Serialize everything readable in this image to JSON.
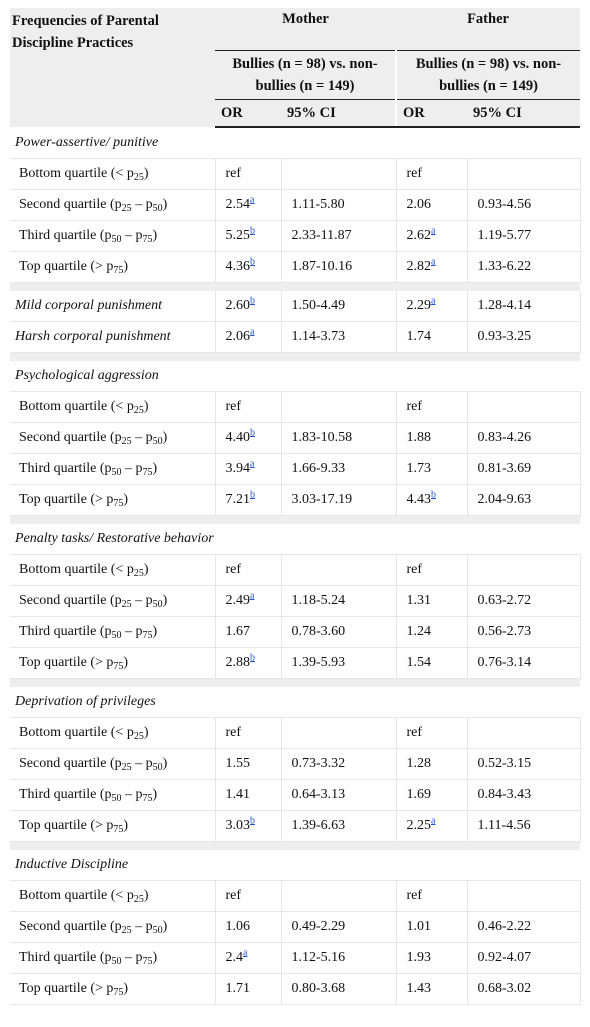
{
  "header": {
    "col_label": "Frequencies of Parental Discipline Practices",
    "mother": "Mother",
    "father": "Father",
    "mother_sub": "Bullies (n = 98) vs. non-bullies (n = 149)",
    "father_sub": "Bullies (n = 98) vs. non-bullies (n = 149)",
    "or": "OR",
    "ci": "95% CI"
  },
  "sections": [
    {
      "title": "Power-assertive/ punitive",
      "rows": [
        {
          "p": "Bottom quartile (< p",
          "s1": "25",
          "m": "",
          "s2": "",
          "e": ")",
          "mor": "ref",
          "msup": "",
          "mci": "",
          "for": "ref",
          "fsup": "",
          "fci": ""
        },
        {
          "p": "Second quartile (p",
          "s1": "25",
          "m": " – p",
          "s2": "50",
          "e": ")",
          "mor": "2.54",
          "msup": "a",
          "mci": "1.11-5.80",
          "for": "2.06",
          "fsup": "",
          "fci": "0.93-4.56"
        },
        {
          "p": "Third quartile (p",
          "s1": "50",
          "m": " – p",
          "s2": "75",
          "e": ")",
          "mor": "5.25",
          "msup": "b",
          "mci": "2.33-11.87",
          "for": "2.62",
          "fsup": "a",
          "fci": "1.19-5.77"
        },
        {
          "p": "Top quartile (> p",
          "s1": "75",
          "m": "",
          "s2": "",
          "e": ")",
          "mor": "4.36",
          "msup": "b",
          "mci": "1.87-10.16",
          "for": "2.82",
          "fsup": "a",
          "fci": "1.33-6.22"
        }
      ]
    },
    {
      "title": "",
      "rows": [
        {
          "it": "Mild corporal punishment",
          "mor": "2.60",
          "msup": "b",
          "mci": "1.50-4.49",
          "for": "2.29",
          "fsup": "a",
          "fci": "1.28-4.14"
        },
        {
          "it": "Harsh corporal punishment",
          "mor": "2.06",
          "msup": "a",
          "mci": "1.14-3.73",
          "for": "1.74",
          "fsup": "",
          "fci": "0.93-3.25"
        }
      ]
    },
    {
      "title": "Psychological aggression",
      "rows": [
        {
          "p": "Bottom quartile (< p",
          "s1": "25",
          "m": "",
          "s2": "",
          "e": ")",
          "mor": "ref",
          "msup": "",
          "mci": "",
          "for": "ref",
          "fsup": "",
          "fci": ""
        },
        {
          "p": "Second quartile (p",
          "s1": "25",
          "m": " – p",
          "s2": "50",
          "e": ")",
          "mor": "4.40",
          "msup": "b",
          "mci": "1.83-10.58",
          "for": "1.88",
          "fsup": "",
          "fci": "0.83-4.26"
        },
        {
          "p": "Third quartile (p",
          "s1": "50",
          "m": " – p",
          "s2": "75",
          "e": ")",
          "mor": "3.94",
          "msup": "a",
          "mci": "1.66-9.33",
          "for": "1.73",
          "fsup": "",
          "fci": "0.81-3.69"
        },
        {
          "p": "Top quartile (> p",
          "s1": "75",
          "m": "",
          "s2": "",
          "e": ")",
          "mor": "7.21",
          "msup": "b",
          "mci": "3.03-17.19",
          "for": "4.43",
          "fsup": "b",
          "fci": "2.04-9.63"
        }
      ]
    },
    {
      "title": "Penalty tasks/ Restorative behavior",
      "rows": [
        {
          "p": "Bottom quartile (< p",
          "s1": "25",
          "m": "",
          "s2": "",
          "e": ")",
          "mor": "ref",
          "msup": "",
          "mci": "",
          "for": "ref",
          "fsup": "",
          "fci": ""
        },
        {
          "p": "Second quartile (p",
          "s1": "25",
          "m": " – p",
          "s2": "50",
          "e": ")",
          "mor": "2.49",
          "msup": "a",
          "mci": "1.18-5.24",
          "for": "1.31",
          "fsup": "",
          "fci": "0.63-2.72"
        },
        {
          "p": "Third quartile (p",
          "s1": "50",
          "m": " – p",
          "s2": "75",
          "e": ")",
          "mor": "1.67",
          "msup": "",
          "mci": "0.78-3.60",
          "for": "1.24",
          "fsup": "",
          "fci": "0.56-2.73"
        },
        {
          "p": "Top quartile (> p",
          "s1": "75",
          "m": "",
          "s2": "",
          "e": ")",
          "mor": "2.88",
          "msup": "b",
          "mci": "1.39-5.93",
          "for": "1.54",
          "fsup": "",
          "fci": "0.76-3.14"
        }
      ]
    },
    {
      "title": "Deprivation of privileges",
      "rows": [
        {
          "p": "Bottom quartile (< p",
          "s1": "25",
          "m": "",
          "s2": "",
          "e": ")",
          "mor": "ref",
          "msup": "",
          "mci": "",
          "for": "ref",
          "fsup": "",
          "fci": ""
        },
        {
          "p": "Second quartile (p",
          "s1": "25",
          "m": " – p",
          "s2": "50",
          "e": ")",
          "mor": "1.55",
          "msup": "",
          "mci": "0.73-3.32",
          "for": "1.28",
          "fsup": "",
          "fci": "0.52-3.15"
        },
        {
          "p": "Third quartile (p",
          "s1": "50",
          "m": " – p",
          "s2": "75",
          "e": ")",
          "mor": "1.41",
          "msup": "",
          "mci": "0.64-3.13",
          "for": "1.69",
          "fsup": "",
          "fci": "0.84-3.43"
        },
        {
          "p": "Top quartile (> p",
          "s1": "75",
          "m": "",
          "s2": "",
          "e": ")",
          "mor": "3.03",
          "msup": "b",
          "mci": "1.39-6.63",
          "for": "2.25",
          "fsup": "a",
          "fci": "1.11-4.56"
        }
      ]
    },
    {
      "title": "Inductive Discipline",
      "rows": [
        {
          "p": "Bottom quartile (< p",
          "s1": "25",
          "m": "",
          "s2": "",
          "e": ")",
          "mor": "ref",
          "msup": "",
          "mci": "",
          "for": "ref",
          "fsup": "",
          "fci": ""
        },
        {
          "p": "Second quartile (p",
          "s1": "25",
          "m": " – p",
          "s2": "50",
          "e": ")",
          "mor": "1.06",
          "msup": "",
          "mci": "0.49-2.29",
          "for": "1.01",
          "fsup": "",
          "fci": "0.46-2.22"
        },
        {
          "p": "Third quartile (p",
          "s1": "50",
          "m": " – p",
          "s2": "75",
          "e": ")",
          "mor": "2.4",
          "msup": "a",
          "mci": "1.12-5.16",
          "for": "1.93",
          "fsup": "",
          "fci": "0.92-4.07"
        },
        {
          "p": "Top quartile (> p",
          "s1": "75",
          "m": "",
          "s2": "",
          "e": ")",
          "mor": "1.71",
          "msup": "",
          "mci": "0.80-3.68",
          "for": "1.43",
          "fsup": "",
          "fci": "0.68-3.02"
        }
      ]
    }
  ]
}
